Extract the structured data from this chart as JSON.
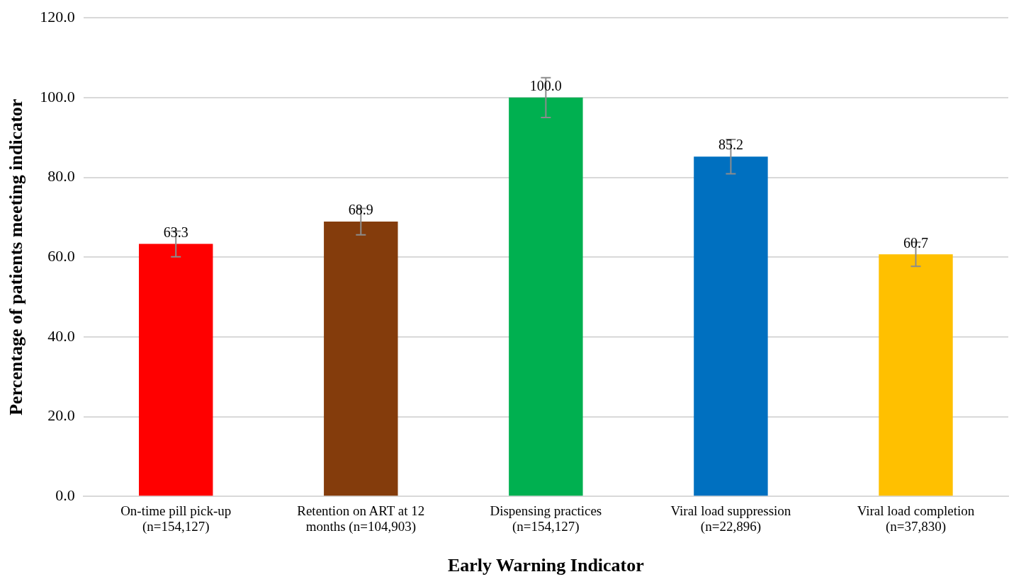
{
  "chart_data": {
    "type": "bar",
    "xlabel": "Early Warning Indicator",
    "ylabel": "Percentage of patients meeting indicator",
    "categories": [
      "On-time pill pick-up (n=154,127)",
      "Retention on ART at 12 months (n=104,903)",
      "Dispensing practices (n=154,127)",
      "Viral load suppression (n=22,896)",
      "Viral load completion (n=37,830)"
    ],
    "values": [
      63.3,
      68.9,
      100.0,
      85.2,
      60.7
    ],
    "colors": [
      "#ff0000",
      "#843c0c",
      "#00b050",
      "#0070c0",
      "#ffc000"
    ],
    "errors": [
      3.2,
      3.3,
      5,
      4.3,
      3
    ],
    "value_labels": [
      "63.3",
      "68.9",
      "100.0",
      "85.2",
      "60.7"
    ],
    "ylim": [
      0,
      120
    ],
    "yticks": [
      {
        "value": 0,
        "label": "0.0"
      },
      {
        "value": 20,
        "label": "20.0"
      },
      {
        "value": 40,
        "label": "40.0"
      },
      {
        "value": 60,
        "label": "60.0"
      },
      {
        "value": 80,
        "label": "80.0"
      },
      {
        "value": 100,
        "label": "100.0"
      },
      {
        "value": 120,
        "label": "120.0"
      }
    ],
    "grid": "y",
    "legend": false
  }
}
